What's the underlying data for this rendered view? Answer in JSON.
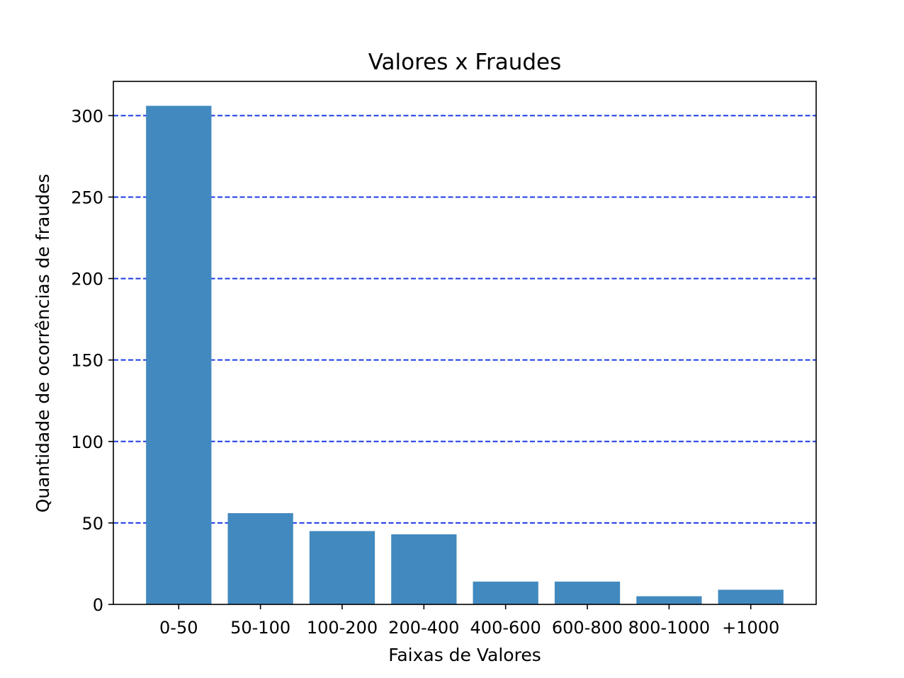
{
  "chart_data": {
    "type": "bar",
    "title": "Valores x Fraudes",
    "xlabel": "Faixas de Valores",
    "ylabel": "Quantidade de ocorrências de fraudes",
    "categories": [
      "0-50",
      "50-100",
      "100-200",
      "200-400",
      "400-600",
      "600-800",
      "800-1000",
      "+1000"
    ],
    "values": [
      306,
      56,
      45,
      43,
      14,
      14,
      5,
      9
    ],
    "ylim": [
      0,
      321
    ],
    "yticks": [
      0,
      50,
      100,
      150,
      200,
      250,
      300
    ],
    "grid": {
      "axis": "y",
      "style": "dashed",
      "color": "#1a3be8"
    },
    "bar_color": "#4289bf",
    "legend": "none"
  }
}
